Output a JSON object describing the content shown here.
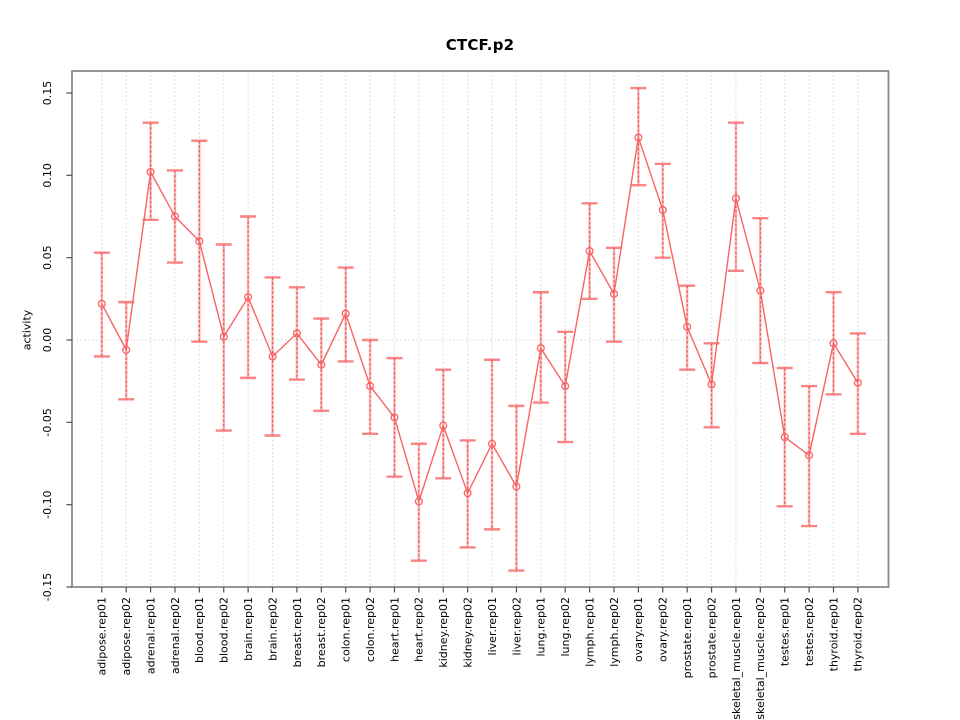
{
  "title": "CTCF.p2",
  "chart_data": {
    "type": "line",
    "title": "CTCF.p2",
    "xlabel": "",
    "ylabel": "activity",
    "ylim": [
      -0.15,
      0.15
    ],
    "yticks": [
      0.15,
      0.1,
      0.05,
      0.0,
      -0.05,
      -0.1,
      -0.15
    ],
    "ytick_labels": [
      "0.15",
      "0.10",
      "0.05",
      "0.00",
      "-0.05",
      "-0.10",
      "-0.15"
    ],
    "grid": "vertical dotted gridline at each category; dotted horizontal line at zero",
    "legend_position": "none",
    "point_style": "open-circle",
    "line_color": "#f86363",
    "error_bar_color": "#fbaaaa",
    "grid_color": "#d8d8d8",
    "box_color": "#8a8a8a",
    "categories": [
      "adipose.rep01",
      "adipose.rep02",
      "adrenal.rep01",
      "adrenal.rep02",
      "blood.rep01",
      "blood.rep02",
      "brain.rep01",
      "brain.rep02",
      "breast.rep01",
      "breast.rep02",
      "colon.rep01",
      "colon.rep02",
      "heart.rep01",
      "heart.rep02",
      "kidney.rep01",
      "kidney.rep02",
      "liver.rep01",
      "liver.rep02",
      "lung.rep01",
      "lung.rep02",
      "lymph.rep01",
      "lymph.rep02",
      "ovary.rep01",
      "ovary.rep02",
      "prostate.rep01",
      "prostate.rep02",
      "skeletal_muscle.rep01",
      "skeletal_muscle.rep02",
      "testes.rep01",
      "testes.rep02",
      "thyroid.rep01",
      "thyroid.rep02"
    ],
    "series": [
      {
        "name": "activity",
        "values": [
          0.022,
          -0.006,
          0.102,
          0.075,
          0.06,
          0.002,
          0.026,
          -0.01,
          0.004,
          -0.015,
          0.016,
          -0.028,
          -0.047,
          -0.098,
          -0.052,
          -0.093,
          -0.063,
          -0.089,
          -0.005,
          -0.028,
          0.054,
          0.028,
          0.123,
          0.079,
          0.008,
          -0.027,
          0.086,
          0.03,
          -0.059,
          -0.07,
          -0.002,
          -0.026
        ],
        "error_low": [
          -0.01,
          -0.036,
          0.073,
          0.047,
          -0.001,
          -0.055,
          -0.023,
          -0.058,
          -0.024,
          -0.043,
          -0.013,
          -0.057,
          -0.083,
          -0.134,
          -0.084,
          -0.126,
          -0.115,
          -0.14,
          -0.038,
          -0.062,
          0.025,
          -0.001,
          0.094,
          0.05,
          -0.018,
          -0.053,
          0.042,
          -0.014,
          -0.101,
          -0.113,
          -0.033,
          -0.057
        ],
        "error_high": [
          0.053,
          0.023,
          0.132,
          0.103,
          0.121,
          0.058,
          0.075,
          0.038,
          0.032,
          0.013,
          0.044,
          0.0,
          -0.011,
          -0.063,
          -0.018,
          -0.061,
          -0.012,
          -0.04,
          0.029,
          0.005,
          0.083,
          0.056,
          0.153,
          0.107,
          0.033,
          -0.002,
          0.132,
          0.074,
          -0.017,
          -0.028,
          0.029,
          0.004
        ]
      }
    ]
  }
}
